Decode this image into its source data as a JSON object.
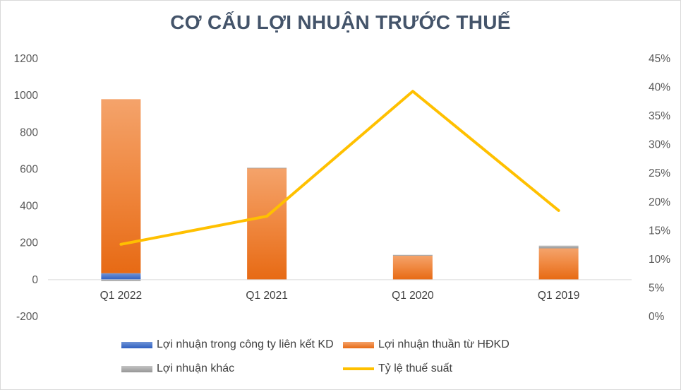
{
  "chart_data": {
    "type": "bar",
    "title": "CƠ CẤU LỢI NHUẬN TRƯỚC THUẾ",
    "categories": [
      "Q1 2022",
      "Q1 2021",
      "Q1 2020",
      "Q1 2019"
    ],
    "y_left": {
      "min": -200,
      "max": 1200,
      "step": 200,
      "ticks": [
        "1200",
        "1000",
        "800",
        "600",
        "400",
        "200",
        "0",
        "-200"
      ]
    },
    "y_right": {
      "min": 0,
      "max": 0.45,
      "step": 0.05,
      "ticks": [
        "45%",
        "40%",
        "35%",
        "30%",
        "25%",
        "20%",
        "15%",
        "10%",
        "5%",
        "0%"
      ]
    },
    "series": [
      {
        "name": "Lợi nhuận trong công ty liên kết KD",
        "kind": "bar",
        "color": "#4472c4",
        "values": [
          35,
          0,
          0,
          0
        ]
      },
      {
        "name": "Lợi nhuận thuần từ HĐKD",
        "kind": "bar",
        "color": "#ed7d31",
        "values": [
          945,
          605,
          130,
          170
        ]
      },
      {
        "name": "Lợi nhuận khác",
        "kind": "bar",
        "color": "#a5a5a5",
        "values": [
          -8,
          3,
          5,
          15
        ]
      },
      {
        "name": "Tỷ lệ thuế suất",
        "kind": "line",
        "axis": "right",
        "color": "#ffc000",
        "values": [
          0.126,
          0.175,
          0.393,
          0.185
        ]
      }
    ]
  }
}
